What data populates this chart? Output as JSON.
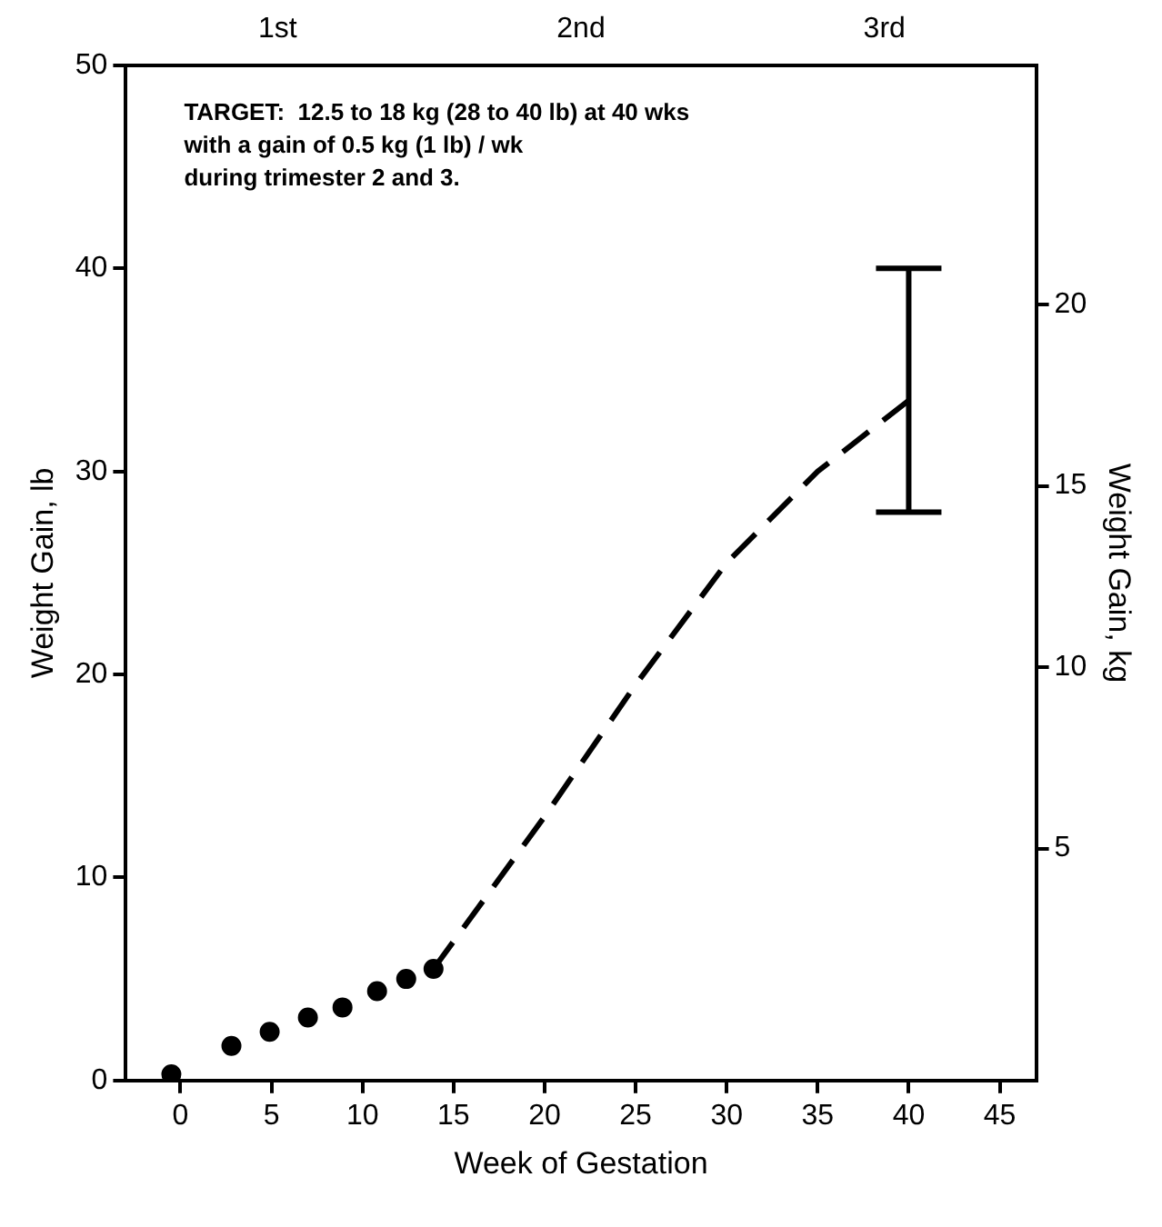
{
  "chart_data": {
    "type": "line",
    "xlabel": "Week of Gestation",
    "ylabel": "Weight Gain, lb",
    "y2label": "Weight Gain, kg",
    "annotations": [
      "TARGET:  12.5 to 18 kg (28 to 40 lb) at 40 wks\nwith a gain of 0.5 kg (1 lb) / wk\nduring trimester 2 and 3.",
      "1st",
      "2nd",
      "3rd"
    ],
    "series": [
      {
        "type": "scatter",
        "marker": "circle",
        "color": "#000000",
        "x": [
          -0.5,
          2.8,
          4.9,
          7.0,
          8.9,
          10.8,
          12.4,
          13.9
        ],
        "values": [
          0.3,
          1.7,
          2.4,
          3.1,
          3.6,
          4.4,
          5.0,
          5.5
        ]
      },
      {
        "type": "line",
        "marker": "none",
        "line_style": "dashed",
        "color": "#000000",
        "x": [
          13.9,
          20,
          25,
          30,
          35,
          40
        ],
        "values": [
          5.5,
          13,
          19.5,
          25.5,
          30,
          33.5
        ],
        "errors": [
          null,
          null,
          null,
          null,
          null,
          [
            28,
            40
          ]
        ]
      }
    ],
    "xlim": [
      -3,
      47
    ],
    "xticks": [
      0,
      5,
      10,
      15,
      20,
      25,
      30,
      35,
      40,
      45
    ],
    "ylim": [
      0,
      50
    ],
    "yticks": [
      0,
      10,
      20,
      30,
      40,
      50
    ],
    "y2lim": [
      -1.4,
      26.6
    ],
    "y2ticks": [
      5,
      10,
      15,
      20
    ],
    "grid": false,
    "legend": false
  }
}
